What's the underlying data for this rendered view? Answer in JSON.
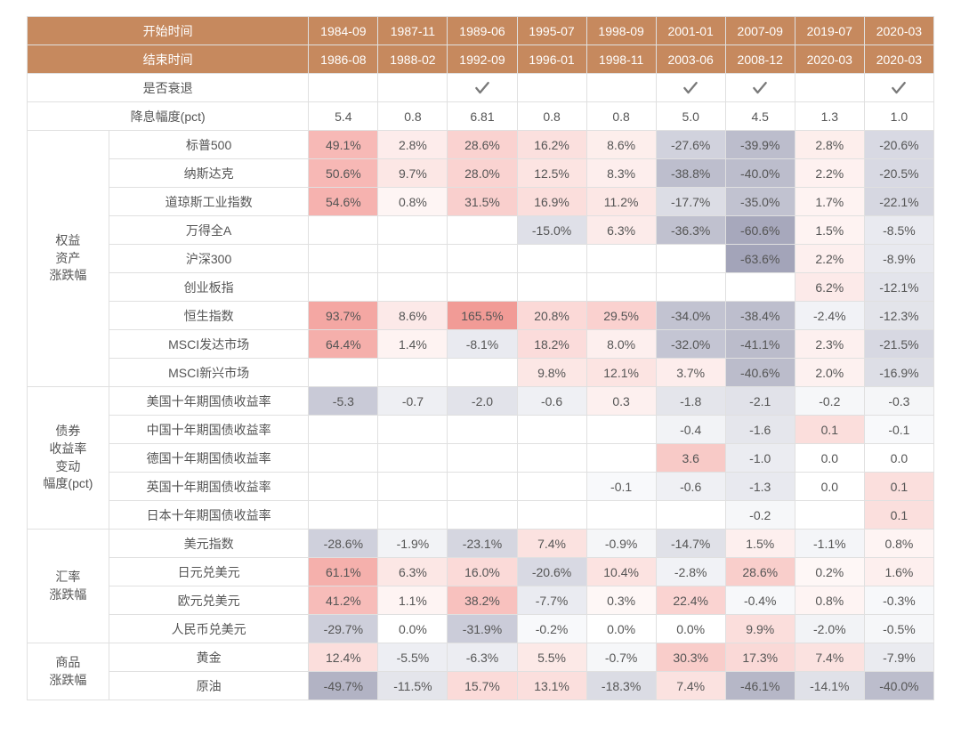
{
  "periods": [
    "1984-09",
    "1987-11",
    "1989-06",
    "1995-07",
    "1998-09",
    "2001-01",
    "2007-09",
    "2019-07",
    "2020-03"
  ],
  "end_periods": [
    "1986-08",
    "1988-02",
    "1992-09",
    "1996-01",
    "1998-11",
    "2003-06",
    "2008-12",
    "2020-03",
    "2020-03"
  ],
  "row_headers": {
    "start": "开始时间",
    "end": "结束时间",
    "recession": "是否衰退",
    "cut": "降息幅度(pct)"
  },
  "recession": [
    false,
    false,
    true,
    false,
    false,
    true,
    true,
    false,
    true
  ],
  "cut_magnitude": [
    "5.4",
    "0.8",
    "6.81",
    "0.8",
    "0.8",
    "5.0",
    "4.5",
    "1.3",
    "1.0"
  ],
  "check_color": "#7a7a7a",
  "groups": [
    {
      "name": "权益\n资产\n涨跌幅",
      "rows": [
        {
          "label": "标普500",
          "cells": [
            {
              "v": "49.1%",
              "bg": "#f7b9b6"
            },
            {
              "v": "2.8%",
              "bg": "#fdeceb"
            },
            {
              "v": "28.6%",
              "bg": "#fad2d0"
            },
            {
              "v": "16.2%",
              "bg": "#fbe0de"
            },
            {
              "v": "8.6%",
              "bg": "#fdeeec"
            },
            {
              "v": "-27.6%",
              "bg": "#d1d2dd"
            },
            {
              "v": "-39.9%",
              "bg": "#bcbdcc"
            },
            {
              "v": "2.8%",
              "bg": "#fdeeec"
            },
            {
              "v": "-20.6%",
              "bg": "#d8d9e3"
            }
          ]
        },
        {
          "label": "纳斯达克",
          "cells": [
            {
              "v": "50.6%",
              "bg": "#f7b8b5"
            },
            {
              "v": "9.7%",
              "bg": "#fce7e5"
            },
            {
              "v": "28.0%",
              "bg": "#fad3d1"
            },
            {
              "v": "12.5%",
              "bg": "#fce4e2"
            },
            {
              "v": "8.3%",
              "bg": "#fdeeed"
            },
            {
              "v": "-38.8%",
              "bg": "#bdbecd"
            },
            {
              "v": "-40.0%",
              "bg": "#bcbdcc"
            },
            {
              "v": "2.2%",
              "bg": "#fef1f0"
            },
            {
              "v": "-20.5%",
              "bg": "#d8d9e3"
            }
          ]
        },
        {
          "label": "道琼斯工业指数",
          "cells": [
            {
              "v": "54.6%",
              "bg": "#f6b2af"
            },
            {
              "v": "0.8%",
              "bg": "#fef5f4"
            },
            {
              "v": "31.5%",
              "bg": "#f9cfcd"
            },
            {
              "v": "16.9%",
              "bg": "#fbdedc"
            },
            {
              "v": "11.2%",
              "bg": "#fce7e5"
            },
            {
              "v": "-17.7%",
              "bg": "#dcdde5"
            },
            {
              "v": "-35.0%",
              "bg": "#c1c2d0"
            },
            {
              "v": "1.7%",
              "bg": "#fef3f2"
            },
            {
              "v": "-22.1%",
              "bg": "#d6d7e1"
            }
          ]
        },
        {
          "label": "万得全A",
          "cells": [
            {
              "v": ""
            },
            {
              "v": ""
            },
            {
              "v": ""
            },
            {
              "v": "-15.0%",
              "bg": "#dfe0e8"
            },
            {
              "v": "6.3%",
              "bg": "#fcebea"
            },
            {
              "v": "-36.3%",
              "bg": "#c0c1cf"
            },
            {
              "v": "-60.6%",
              "bg": "#a7a8bc"
            },
            {
              "v": "1.5%",
              "bg": "#fef3f2"
            },
            {
              "v": "-8.5%",
              "bg": "#e9eaf0"
            }
          ]
        },
        {
          "label": "沪深300",
          "cells": [
            {
              "v": ""
            },
            {
              "v": ""
            },
            {
              "v": ""
            },
            {
              "v": ""
            },
            {
              "v": ""
            },
            {
              "v": ""
            },
            {
              "v": "-63.6%",
              "bg": "#a3a4b9"
            },
            {
              "v": "2.2%",
              "bg": "#fdefee"
            },
            {
              "v": "-8.9%",
              "bg": "#e8e9ef"
            }
          ]
        },
        {
          "label": "创业板指",
          "cells": [
            {
              "v": ""
            },
            {
              "v": ""
            },
            {
              "v": ""
            },
            {
              "v": ""
            },
            {
              "v": ""
            },
            {
              "v": ""
            },
            {
              "v": ""
            },
            {
              "v": "6.2%",
              "bg": "#fceae9"
            },
            {
              "v": "-12.1%",
              "bg": "#e3e4eb"
            }
          ]
        },
        {
          "label": "恒生指数",
          "cells": [
            {
              "v": "93.7%",
              "bg": "#f4a7a3"
            },
            {
              "v": "8.6%",
              "bg": "#fce9e8"
            },
            {
              "v": "165.5%",
              "bg": "#f19b96"
            },
            {
              "v": "20.8%",
              "bg": "#fbd9d7"
            },
            {
              "v": "29.5%",
              "bg": "#fad1cf"
            },
            {
              "v": "-34.0%",
              "bg": "#c2c3d1"
            },
            {
              "v": "-38.4%",
              "bg": "#bdbecd"
            },
            {
              "v": "-2.4%",
              "bg": "#f1f2f6"
            },
            {
              "v": "-12.3%",
              "bg": "#e3e4ea"
            }
          ]
        },
        {
          "label": "MSCI发达市场",
          "cells": [
            {
              "v": "64.4%",
              "bg": "#f5afab"
            },
            {
              "v": "1.4%",
              "bg": "#fef3f2"
            },
            {
              "v": "-8.1%",
              "bg": "#e9eaf0"
            },
            {
              "v": "18.2%",
              "bg": "#fbdcdb"
            },
            {
              "v": "8.0%",
              "bg": "#fdefee"
            },
            {
              "v": "-32.0%",
              "bg": "#c4c5d3"
            },
            {
              "v": "-41.1%",
              "bg": "#bbbccb"
            },
            {
              "v": "2.3%",
              "bg": "#fdf0ef"
            },
            {
              "v": "-21.5%",
              "bg": "#d7d8e2"
            }
          ]
        },
        {
          "label": "MSCI新兴市场",
          "cells": [
            {
              "v": ""
            },
            {
              "v": ""
            },
            {
              "v": ""
            },
            {
              "v": "9.8%",
              "bg": "#fce7e5"
            },
            {
              "v": "12.1%",
              "bg": "#fce4e2"
            },
            {
              "v": "3.7%",
              "bg": "#fdedec"
            },
            {
              "v": "-40.6%",
              "bg": "#bbbccb"
            },
            {
              "v": "2.0%",
              "bg": "#fdf1f0"
            },
            {
              "v": "-16.9%",
              "bg": "#dddee6"
            }
          ]
        }
      ]
    },
    {
      "name": "债券\n收益率\n变动\n幅度(pct)",
      "rows": [
        {
          "label": "美国十年期国债收益率",
          "cells": [
            {
              "v": "-5.3",
              "bg": "#c9cad7"
            },
            {
              "v": "-0.7",
              "bg": "#eeeff3"
            },
            {
              "v": "-2.0",
              "bg": "#e2e3ea"
            },
            {
              "v": "-0.6",
              "bg": "#eff0f4"
            },
            {
              "v": "0.3",
              "bg": "#fdf0ef"
            },
            {
              "v": "-1.8",
              "bg": "#e4e5eb"
            },
            {
              "v": "-2.1",
              "bg": "#e1e2e9"
            },
            {
              "v": "-0.2",
              "bg": "#f6f7f9"
            },
            {
              "v": "-0.3",
              "bg": "#f5f6f8"
            }
          ]
        },
        {
          "label": "中国十年期国债收益率",
          "cells": [
            {
              "v": ""
            },
            {
              "v": ""
            },
            {
              "v": ""
            },
            {
              "v": ""
            },
            {
              "v": ""
            },
            {
              "v": "-0.4",
              "bg": "#f2f3f6"
            },
            {
              "v": "-1.6",
              "bg": "#e5e6ec"
            },
            {
              "v": "0.1",
              "bg": "#fbdedc"
            },
            {
              "v": "-0.1",
              "bg": "#f8f9fb"
            }
          ]
        },
        {
          "label": "德国十年期国债收益率",
          "cells": [
            {
              "v": ""
            },
            {
              "v": ""
            },
            {
              "v": ""
            },
            {
              "v": ""
            },
            {
              "v": ""
            },
            {
              "v": "3.6",
              "bg": "#f8cac7"
            },
            {
              "v": "-1.0",
              "bg": "#ebecf1"
            },
            {
              "v": "0.0",
              "bg": "#ffffff"
            },
            {
              "v": "0.0",
              "bg": "#ffffff"
            }
          ]
        },
        {
          "label": "英国十年期国债收益率",
          "cells": [
            {
              "v": ""
            },
            {
              "v": ""
            },
            {
              "v": ""
            },
            {
              "v": ""
            },
            {
              "v": "-0.1",
              "bg": "#f8f9fb"
            },
            {
              "v": "-0.6",
              "bg": "#eff0f4"
            },
            {
              "v": "-1.3",
              "bg": "#e8e9ef"
            },
            {
              "v": "0.0",
              "bg": "#ffffff"
            },
            {
              "v": "0.1",
              "bg": "#fbdfdd"
            }
          ]
        },
        {
          "label": "日本十年期国债收益率",
          "cells": [
            {
              "v": ""
            },
            {
              "v": ""
            },
            {
              "v": ""
            },
            {
              "v": ""
            },
            {
              "v": ""
            },
            {
              "v": ""
            },
            {
              "v": "-0.2",
              "bg": "#f6f7f9"
            },
            {
              "v": ""
            },
            {
              "v": "0.1",
              "bg": "#fbdfdd"
            }
          ]
        }
      ]
    },
    {
      "name": "汇率\n涨跌幅",
      "rows": [
        {
          "label": "美元指数",
          "cells": [
            {
              "v": "-28.6%",
              "bg": "#cfd0dc"
            },
            {
              "v": "-1.9%",
              "bg": "#f2f3f6"
            },
            {
              "v": "-23.1%",
              "bg": "#d5d6e0"
            },
            {
              "v": "7.4%",
              "bg": "#fbe2e0"
            },
            {
              "v": "-0.9%",
              "bg": "#f5f6f8"
            },
            {
              "v": "-14.7%",
              "bg": "#e0e1e8"
            },
            {
              "v": "1.5%",
              "bg": "#fdefee"
            },
            {
              "v": "-1.1%",
              "bg": "#f4f5f8"
            },
            {
              "v": "0.8%",
              "bg": "#fef4f3"
            }
          ]
        },
        {
          "label": "日元兑美元",
          "cells": [
            {
              "v": "61.1%",
              "bg": "#f5b0ac"
            },
            {
              "v": "6.3%",
              "bg": "#fce7e5"
            },
            {
              "v": "16.0%",
              "bg": "#fbdad8"
            },
            {
              "v": "-20.6%",
              "bg": "#d8d9e3"
            },
            {
              "v": "10.4%",
              "bg": "#fce3e1"
            },
            {
              "v": "-2.8%",
              "bg": "#f1f2f6"
            },
            {
              "v": "28.6%",
              "bg": "#f9cecb"
            },
            {
              "v": "0.2%",
              "bg": "#fef7f6"
            },
            {
              "v": "1.6%",
              "bg": "#fdefee"
            }
          ]
        },
        {
          "label": "欧元兑美元",
          "cells": [
            {
              "v": "41.2%",
              "bg": "#f7bcb9"
            },
            {
              "v": "1.1%",
              "bg": "#fef4f3"
            },
            {
              "v": "38.2%",
              "bg": "#f8c1be"
            },
            {
              "v": "-7.7%",
              "bg": "#eaebf1"
            },
            {
              "v": "0.3%",
              "bg": "#fef7f6"
            },
            {
              "v": "22.4%",
              "bg": "#fad3d1"
            },
            {
              "v": "-0.4%",
              "bg": "#f7f8fa"
            },
            {
              "v": "0.8%",
              "bg": "#fef4f3"
            },
            {
              "v": "-0.3%",
              "bg": "#f7f8fa"
            }
          ]
        },
        {
          "label": "人民币兑美元",
          "cells": [
            {
              "v": "-29.7%",
              "bg": "#cecfdb"
            },
            {
              "v": "0.0%",
              "bg": "#ffffff"
            },
            {
              "v": "-31.9%",
              "bg": "#cbccd9"
            },
            {
              "v": "-0.2%",
              "bg": "#f8f9fb"
            },
            {
              "v": "0.0%",
              "bg": "#ffffff"
            },
            {
              "v": "0.0%",
              "bg": "#ffffff"
            },
            {
              "v": "9.9%",
              "bg": "#fbdedc"
            },
            {
              "v": "-2.0%",
              "bg": "#f2f3f6"
            },
            {
              "v": "-0.5%",
              "bg": "#f6f7f9"
            }
          ]
        }
      ]
    },
    {
      "name": "商品\n涨跌幅",
      "rows": [
        {
          "label": "黄金",
          "cells": [
            {
              "v": "12.4%",
              "bg": "#fbdedc"
            },
            {
              "v": "-5.5%",
              "bg": "#edeef3"
            },
            {
              "v": "-6.3%",
              "bg": "#ecedf2"
            },
            {
              "v": "5.5%",
              "bg": "#fce9e7"
            },
            {
              "v": "-0.7%",
              "bg": "#f6f7f9"
            },
            {
              "v": "30.3%",
              "bg": "#f9cdca"
            },
            {
              "v": "17.3%",
              "bg": "#fad9d7"
            },
            {
              "v": "7.4%",
              "bg": "#fbe2e0"
            },
            {
              "v": "-7.9%",
              "bg": "#eaebf0"
            }
          ]
        },
        {
          "label": "原油",
          "cells": [
            {
              "v": "-49.7%",
              "bg": "#b2b3c4"
            },
            {
              "v": "-11.5%",
              "bg": "#e4e5eb"
            },
            {
              "v": "15.7%",
              "bg": "#fbdbd9"
            },
            {
              "v": "13.1%",
              "bg": "#fbdfdd"
            },
            {
              "v": "-18.3%",
              "bg": "#dbdce4"
            },
            {
              "v": "7.4%",
              "bg": "#fbe2e0"
            },
            {
              "v": "-46.1%",
              "bg": "#b6b7c7"
            },
            {
              "v": "-14.1%",
              "bg": "#e0e1e8"
            },
            {
              "v": "-40.0%",
              "bg": "#bcbdcc"
            }
          ]
        }
      ]
    }
  ]
}
